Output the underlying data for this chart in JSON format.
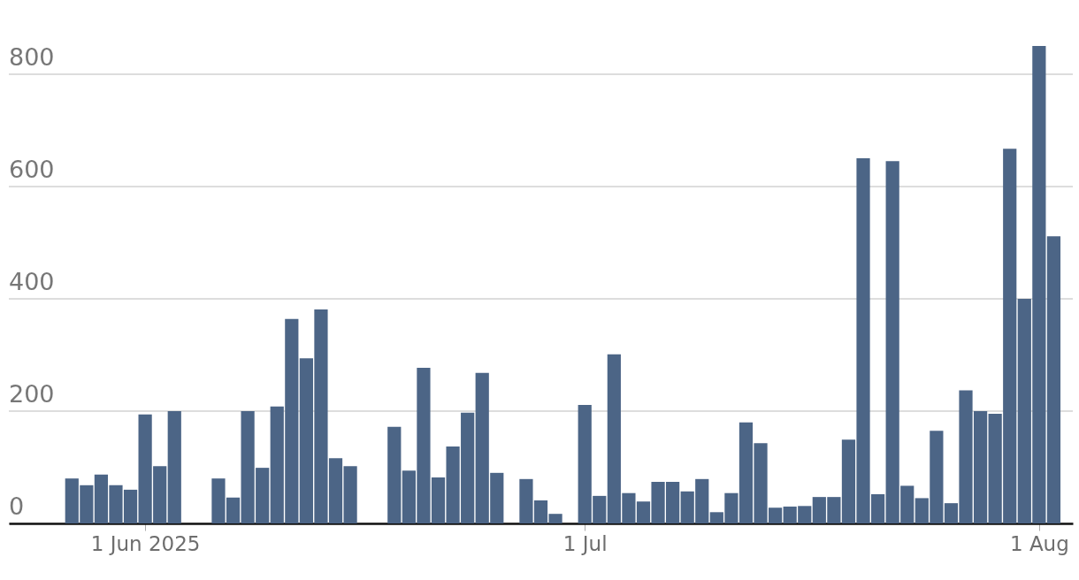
{
  "chart_data": {
    "type": "bar",
    "x": [
      "2025-05-27",
      "2025-05-28",
      "2025-05-29",
      "2025-05-30",
      "2025-05-31",
      "2025-06-01",
      "2025-06-02",
      "2025-06-03",
      "2025-06-04",
      "2025-06-05",
      "2025-06-06",
      "2025-06-07",
      "2025-06-08",
      "2025-06-09",
      "2025-06-10",
      "2025-06-11",
      "2025-06-12",
      "2025-06-13",
      "2025-06-14",
      "2025-06-15",
      "2025-06-16",
      "2025-06-17",
      "2025-06-18",
      "2025-06-19",
      "2025-06-20",
      "2025-06-21",
      "2025-06-22",
      "2025-06-23",
      "2025-06-24",
      "2025-06-25",
      "2025-06-26",
      "2025-06-27",
      "2025-06-28",
      "2025-06-29",
      "2025-06-30",
      "2025-07-01",
      "2025-07-02",
      "2025-07-03",
      "2025-07-04",
      "2025-07-05",
      "2025-07-06",
      "2025-07-07",
      "2025-07-08",
      "2025-07-09",
      "2025-07-10",
      "2025-07-11",
      "2025-07-12",
      "2025-07-13",
      "2025-07-14",
      "2025-07-15",
      "2025-07-16",
      "2025-07-17",
      "2025-07-18",
      "2025-07-19",
      "2025-07-20",
      "2025-07-21",
      "2025-07-22",
      "2025-07-23",
      "2025-07-24",
      "2025-07-25",
      "2025-07-26",
      "2025-07-27",
      "2025-07-28",
      "2025-07-29",
      "2025-07-30",
      "2025-07-31",
      "2025-08-01",
      "2025-08-02"
    ],
    "values": [
      80,
      68,
      87,
      68,
      60,
      194,
      102,
      200,
      null,
      null,
      80,
      46,
      200,
      99,
      208,
      364,
      294,
      381,
      116,
      102,
      null,
      null,
      172,
      94,
      277,
      82,
      137,
      197,
      268,
      90,
      null,
      79,
      41,
      17,
      null,
      211,
      49,
      301,
      54,
      39,
      74,
      74,
      57,
      79,
      20,
      54,
      180,
      143,
      28,
      30,
      31,
      47,
      47,
      149,
      650,
      52,
      645,
      67,
      45,
      165,
      36,
      237,
      200,
      195,
      667,
      400,
      850,
      511
    ],
    "color": "#4c6586",
    "xlim": [
      "2025-05-23",
      "2025-08-03"
    ],
    "xticks": [
      {
        "value": "2025-06-01",
        "label": "1 Jun 2025"
      },
      {
        "value": "2025-07-01",
        "label": "1 Jul"
      },
      {
        "value": "2025-08-01",
        "label": "1 Aug"
      }
    ],
    "ylim": [
      0,
      850
    ],
    "yticks": [
      0,
      200,
      400,
      600,
      800
    ],
    "grid": "y"
  }
}
